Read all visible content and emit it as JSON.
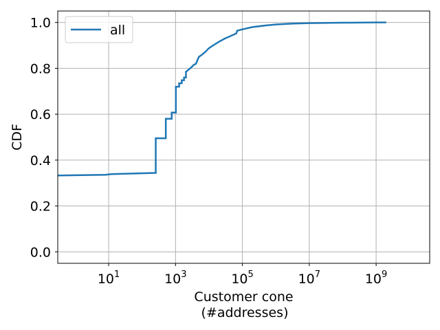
{
  "chart_data": {
    "type": "line",
    "step": true,
    "xscale": "log",
    "xlim": [
      0.3,
      40000000000
    ],
    "ylim": [
      -0.05,
      1.05
    ],
    "grid": true,
    "legend_position": "top-left",
    "xlabel_lines": [
      "Customer cone",
      "(#addresses)"
    ],
    "ylabel": "CDF",
    "xticks": [
      {
        "value": 10,
        "base": "10",
        "exp": "1"
      },
      {
        "value": 1000,
        "base": "10",
        "exp": "3"
      },
      {
        "value": 100000,
        "base": "10",
        "exp": "5"
      },
      {
        "value": 10000000,
        "base": "10",
        "exp": "7"
      },
      {
        "value": 1000000000,
        "base": "10",
        "exp": "9"
      }
    ],
    "yticks": [
      {
        "value": 0.0,
        "label": "0.0"
      },
      {
        "value": 0.2,
        "label": "0.2"
      },
      {
        "value": 0.4,
        "label": "0.4"
      },
      {
        "value": 0.6,
        "label": "0.6"
      },
      {
        "value": 0.8,
        "label": "0.8"
      },
      {
        "value": 1.0,
        "label": "1.0"
      }
    ],
    "series": [
      {
        "name": "all",
        "color": "#1f77b4",
        "points": [
          [
            0.3,
            0.333
          ],
          [
            8,
            0.336
          ],
          [
            12,
            0.339
          ],
          [
            256,
            0.344
          ],
          [
            256,
            0.495
          ],
          [
            512,
            0.495
          ],
          [
            512,
            0.58
          ],
          [
            768,
            0.58
          ],
          [
            768,
            0.607
          ],
          [
            1024,
            0.607
          ],
          [
            1024,
            0.72
          ],
          [
            1280,
            0.72
          ],
          [
            1280,
            0.735
          ],
          [
            1536,
            0.735
          ],
          [
            1536,
            0.748
          ],
          [
            1792,
            0.748
          ],
          [
            1792,
            0.76
          ],
          [
            2048,
            0.76
          ],
          [
            2048,
            0.785
          ],
          [
            2500,
            0.795
          ],
          [
            3000,
            0.805
          ],
          [
            3500,
            0.815
          ],
          [
            4096,
            0.82
          ],
          [
            4500,
            0.835
          ],
          [
            5000,
            0.85
          ],
          [
            6000,
            0.858
          ],
          [
            7000,
            0.866
          ],
          [
            8192,
            0.875
          ],
          [
            10000,
            0.888
          ],
          [
            15000,
            0.905
          ],
          [
            20000,
            0.916
          ],
          [
            30000,
            0.93
          ],
          [
            40000,
            0.938
          ],
          [
            55000,
            0.947
          ],
          [
            65536,
            0.952
          ],
          [
            70000,
            0.964
          ],
          [
            100000,
            0.97
          ],
          [
            200000,
            0.98
          ],
          [
            500000,
            0.987
          ],
          [
            1000000,
            0.991
          ],
          [
            3000000,
            0.995
          ],
          [
            10000000,
            0.997
          ],
          [
            100000000,
            0.999
          ],
          [
            1000000000,
            1.0
          ],
          [
            2000000000,
            1.0
          ]
        ]
      }
    ]
  }
}
